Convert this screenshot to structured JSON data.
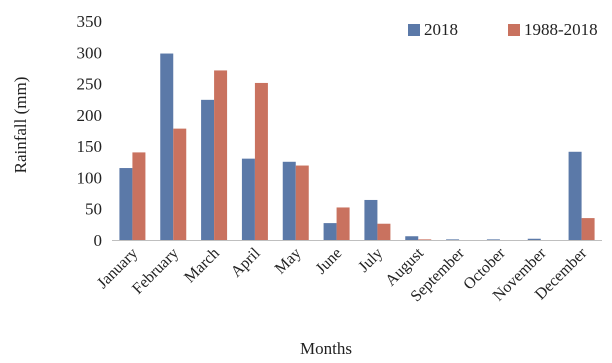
{
  "chart_data": {
    "type": "bar",
    "title": "",
    "xlabel": "Months",
    "ylabel": "Rainfall (mm)",
    "ylim": [
      0,
      350
    ],
    "yticks": [
      0,
      50,
      100,
      150,
      200,
      250,
      300,
      350
    ],
    "grid": false,
    "legend_position": "top-right",
    "categories": [
      "January",
      "February",
      "March",
      "April",
      "May",
      "June",
      "July",
      "August",
      "September",
      "October",
      "November",
      "December"
    ],
    "series": [
      {
        "name": "2018",
        "color": "#5b79a8",
        "values": [
          115,
          298,
          224,
          130,
          125,
          27,
          64,
          6,
          1,
          1,
          2,
          141
        ]
      },
      {
        "name": "1988-2018",
        "color": "#c9725f",
        "values": [
          140,
          178,
          271,
          251,
          119,
          52,
          26,
          1,
          0,
          0,
          0,
          35
        ]
      }
    ]
  }
}
